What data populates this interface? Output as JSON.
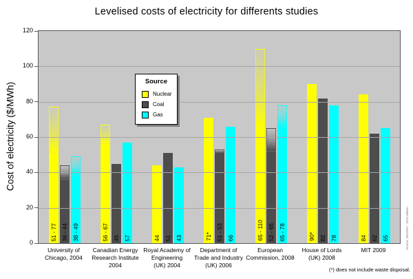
{
  "chart_data": {
    "type": "bar",
    "title": "Levelised costs of electricity for differents studies",
    "ylabel": "Cost of electricity ($/MWh)",
    "xlabel": "",
    "ylim": [
      0,
      120
    ],
    "yticks": [
      0,
      20,
      40,
      60,
      80,
      100,
      120
    ],
    "grid": true,
    "legend": {
      "title": "Source",
      "position": "top-left-inside"
    },
    "series_meta": [
      {
        "name": "Nuclear",
        "color": "#ffff00"
      },
      {
        "name": "Coal",
        "color": "#4d4d4d"
      },
      {
        "name": "Gas",
        "color": "#00ffff"
      }
    ],
    "categories": [
      "University of Chicago, 2004",
      "Canadian Energy Research Institute 2004",
      "Royal Academy of Engineering (UK) 2004",
      "Department of Trade and Industry (UK) 2006",
      "European Commission, 2008",
      "House of Lords (UK) 2008",
      "MIT 2009"
    ],
    "category_label_lines": [
      [
        "University of",
        "Chicago, 2004"
      ],
      [
        "Canadian Energy",
        "Research Institute",
        "2004"
      ],
      [
        "Royal Academy of",
        "Engineering",
        "(UK) 2004"
      ],
      [
        "Department of",
        "Trade and Industry",
        "(UK) 2006"
      ],
      [
        "European",
        "Commission, 2008"
      ],
      [
        "House of Lords",
        "(UK) 2008"
      ],
      [
        "MIT 2009"
      ]
    ],
    "series": [
      {
        "name": "Nuclear",
        "values": [
          [
            51,
            77
          ],
          [
            56,
            67
          ],
          [
            44,
            44
          ],
          [
            71,
            71
          ],
          [
            65,
            110
          ],
          [
            90,
            90
          ],
          [
            84,
            84
          ]
        ],
        "labels": [
          "51 - 77",
          "56 - 67",
          "44",
          "71*",
          "65 - 110",
          "90*",
          "84"
        ]
      },
      {
        "name": "Coal",
        "values": [
          [
            36,
            44
          ],
          [
            45,
            45
          ],
          [
            51,
            51
          ],
          [
            51,
            53
          ],
          [
            52,
            65
          ],
          [
            82,
            82
          ],
          [
            62,
            62
          ]
        ],
        "labels": [
          "36 - 44",
          "45",
          "51",
          "51 - 53",
          "52 - 65",
          "82",
          "62"
        ]
      },
      {
        "name": "Gas",
        "values": [
          [
            38,
            49
          ],
          [
            57,
            57
          ],
          [
            43,
            43
          ],
          [
            66,
            66
          ],
          [
            65,
            78
          ],
          [
            78,
            78
          ],
          [
            65,
            65
          ]
        ],
        "labels": [
          "38 - 49",
          "57",
          "43",
          "66",
          "65 - 78",
          "78",
          "65"
        ]
      }
    ],
    "footnote": "(*) does not include waste disposal.",
    "source_note": "Source: NEA/IEA - 2010 edition"
  },
  "colors": {
    "plot_background": "#c8c8c8",
    "gridline": "#a6a6a6",
    "axis": "#595959"
  }
}
